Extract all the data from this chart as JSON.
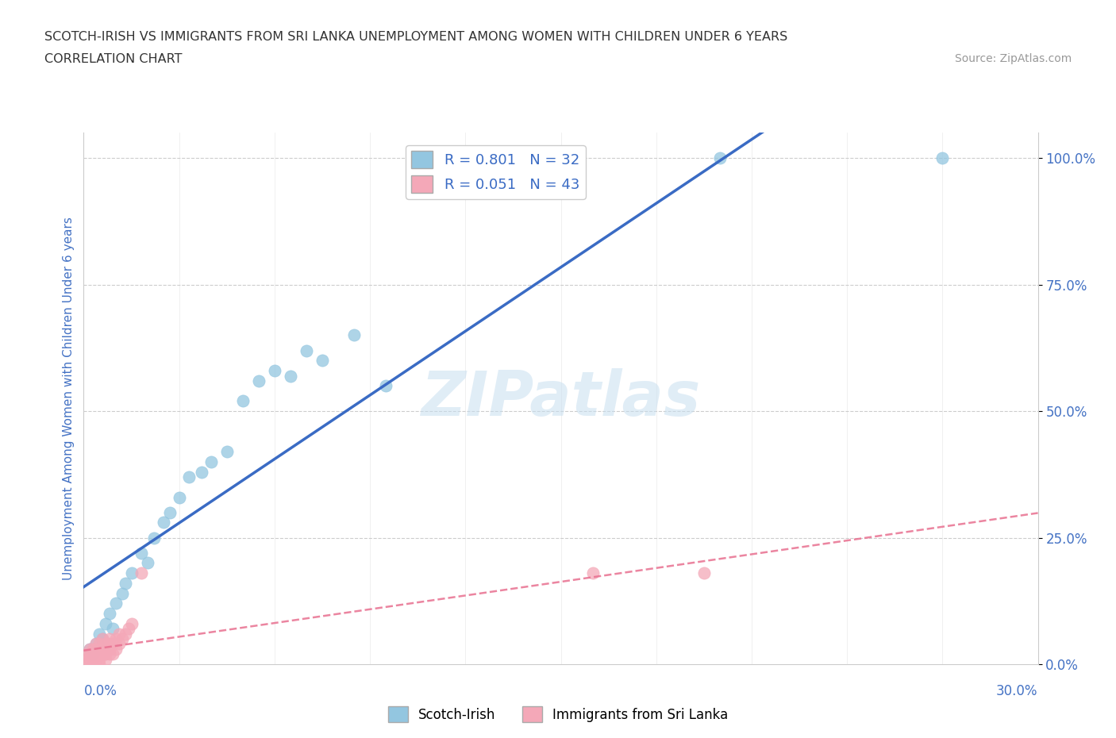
{
  "title_line1": "SCOTCH-IRISH VS IMMIGRANTS FROM SRI LANKA UNEMPLOYMENT AMONG WOMEN WITH CHILDREN UNDER 6 YEARS",
  "title_line2": "CORRELATION CHART",
  "source_text": "Source: ZipAtlas.com",
  "xlabel_bottom_left": "0.0%",
  "xlabel_bottom_right": "30.0%",
  "ylabel": "Unemployment Among Women with Children Under 6 years",
  "watermark": "ZIPatlas",
  "scotch_irish_x": [
    0.002,
    0.003,
    0.004,
    0.005,
    0.006,
    0.007,
    0.008,
    0.009,
    0.01,
    0.012,
    0.013,
    0.015,
    0.018,
    0.02,
    0.022,
    0.025,
    0.027,
    0.03,
    0.033,
    0.037,
    0.04,
    0.045,
    0.05,
    0.055,
    0.06,
    0.065,
    0.07,
    0.075,
    0.085,
    0.095,
    0.2,
    0.27
  ],
  "scotch_irish_y": [
    0.03,
    0.02,
    0.04,
    0.06,
    0.05,
    0.08,
    0.1,
    0.07,
    0.12,
    0.14,
    0.16,
    0.18,
    0.22,
    0.2,
    0.25,
    0.28,
    0.3,
    0.33,
    0.37,
    0.38,
    0.4,
    0.42,
    0.52,
    0.56,
    0.58,
    0.57,
    0.62,
    0.6,
    0.65,
    0.55,
    1.0,
    1.0
  ],
  "sri_lanka_x": [
    0.0,
    0.001,
    0.001,
    0.002,
    0.002,
    0.002,
    0.003,
    0.003,
    0.003,
    0.003,
    0.004,
    0.004,
    0.004,
    0.004,
    0.005,
    0.005,
    0.005,
    0.005,
    0.005,
    0.006,
    0.006,
    0.006,
    0.007,
    0.007,
    0.007,
    0.007,
    0.008,
    0.008,
    0.008,
    0.008,
    0.009,
    0.009,
    0.01,
    0.01,
    0.011,
    0.011,
    0.012,
    0.013,
    0.014,
    0.015,
    0.018,
    0.16,
    0.195
  ],
  "sri_lanka_y": [
    0.0,
    0.02,
    0.01,
    0.01,
    0.03,
    0.02,
    0.0,
    0.02,
    0.01,
    0.03,
    0.01,
    0.02,
    0.04,
    0.03,
    0.0,
    0.02,
    0.01,
    0.03,
    0.04,
    0.02,
    0.03,
    0.05,
    0.01,
    0.03,
    0.02,
    0.04,
    0.02,
    0.04,
    0.03,
    0.05,
    0.02,
    0.04,
    0.03,
    0.05,
    0.04,
    0.06,
    0.05,
    0.06,
    0.07,
    0.08,
    0.18,
    0.18,
    0.18
  ],
  "scotch_irish_color": "#93C6E0",
  "sri_lanka_color": "#F4A8B8",
  "scotch_irish_line_color": "#3A6BC4",
  "sri_lanka_line_color": "#E87090",
  "r_scotch": 0.801,
  "n_scotch": 32,
  "r_sri": 0.051,
  "n_sri": 43,
  "xmin": 0.0,
  "xmax": 0.3,
  "ymin": 0.0,
  "ymax": 1.05,
  "yticks": [
    0.0,
    0.25,
    0.5,
    0.75,
    1.0
  ],
  "ytick_labels": [
    "0.0%",
    "25.0%",
    "50.0%",
    "75.0%",
    "100.0%"
  ],
  "grid_color": "#CCCCCC",
  "background_color": "#FFFFFF",
  "title_color": "#333333",
  "axis_label_color": "#4472C4",
  "axis_tick_color": "#4472C4"
}
